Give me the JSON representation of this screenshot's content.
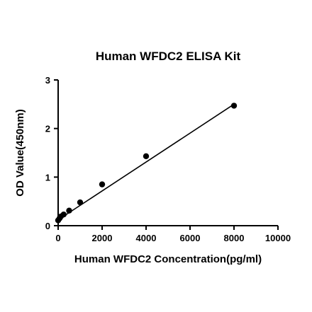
{
  "chart_data": {
    "type": "scatter",
    "title": "Human WFDC2 ELISA Kit",
    "xlabel": "Human WFDC2 Concentration(pg/ml)",
    "ylabel": "OD Value(450nm)",
    "xlim": [
      0,
      10000
    ],
    "ylim": [
      0,
      3
    ],
    "xticks": [
      0,
      2000,
      4000,
      6000,
      8000,
      10000
    ],
    "yticks": [
      0,
      1,
      2,
      3
    ],
    "grid": false,
    "legend": "none",
    "points": [
      {
        "x": 0,
        "y": 0.11
      },
      {
        "x": 62.5,
        "y": 0.15
      },
      {
        "x": 125,
        "y": 0.19
      },
      {
        "x": 250,
        "y": 0.23
      },
      {
        "x": 500,
        "y": 0.31
      },
      {
        "x": 1000,
        "y": 0.48
      },
      {
        "x": 2000,
        "y": 0.85
      },
      {
        "x": 4000,
        "y": 1.43
      },
      {
        "x": 8000,
        "y": 2.47
      }
    ],
    "fit_line": {
      "type": "linear",
      "x": [
        0,
        8000
      ],
      "y": [
        0.12,
        2.5
      ]
    },
    "colors": {
      "marker": "#000000",
      "line": "#000000",
      "axis": "#000000"
    }
  }
}
